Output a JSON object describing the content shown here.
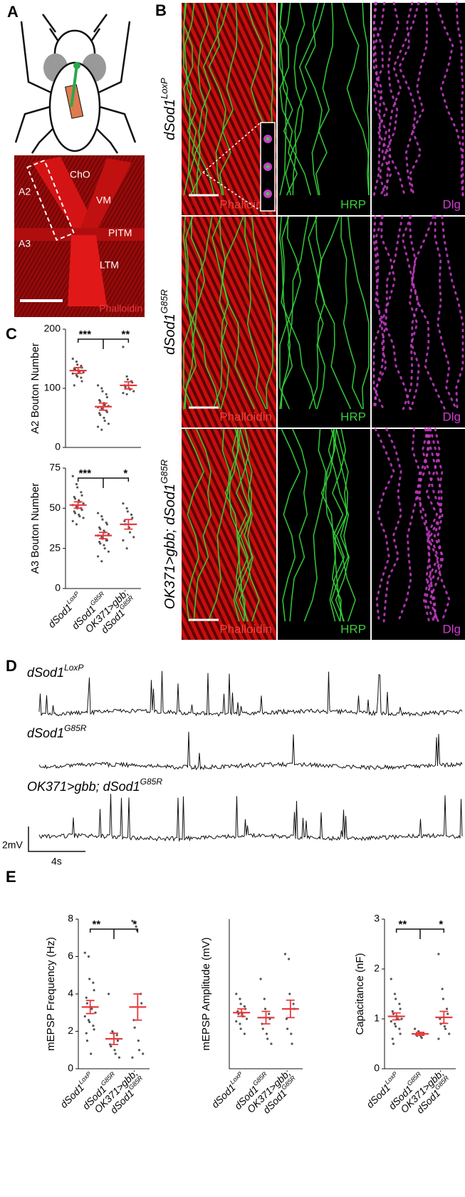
{
  "panel_labels": [
    "A",
    "B",
    "C",
    "D",
    "E"
  ],
  "panel_a": {
    "image_labels": [
      "ChO",
      "VM",
      "A2",
      "PITM",
      "A3",
      "LTM"
    ],
    "stain": "Phalloidin"
  },
  "panel_b": {
    "rows": [
      {
        "genotype": "dSod1",
        "superscript": "LoxP"
      },
      {
        "genotype": "dSod1",
        "superscript": "G85R"
      },
      {
        "prefix": "OK371>gbb; ",
        "genotype": "dSod1",
        "superscript": "G85R"
      }
    ],
    "columns": [
      "Phalloidin",
      "HRP",
      "Dlg"
    ]
  },
  "panel_d": {
    "traces": [
      {
        "genotype": "dSod1",
        "superscript": "LoxP"
      },
      {
        "genotype": "dSod1",
        "superscript": "G85R"
      },
      {
        "prefix": "OK371>gbb; ",
        "genotype": "dSod1",
        "superscript": "G85R"
      }
    ],
    "scale_y": "2mV",
    "scale_x": "4s"
  },
  "chart_data": [
    {
      "type": "dot",
      "ylabel": "A2 Bouton Number",
      "categories": [
        null,
        null,
        null
      ],
      "ylim": [
        0,
        200
      ],
      "yticks": [
        0,
        100,
        200
      ],
      "color": "#e8393d",
      "point_color": "#555555",
      "points": [
        [
          150,
          145,
          140,
          138,
          135,
          133,
          132,
          130,
          128,
          127,
          125,
          122,
          120,
          118,
          112,
          105
        ],
        [
          105,
          100,
          95,
          90,
          85,
          80,
          78,
          75,
          72,
          70,
          68,
          66,
          65,
          62,
          60,
          58,
          55,
          50,
          45,
          40,
          35,
          30
        ],
        [
          170,
          120,
          115,
          112,
          110,
          105,
          102,
          100,
          98,
          95,
          92,
          90
        ]
      ],
      "means": [
        130,
        69,
        105
      ],
      "sem": [
        5,
        6,
        6
      ],
      "significance": [
        "***",
        "**"
      ]
    },
    {
      "type": "dot",
      "ylabel": "A3 Bouton Number",
      "categories": [
        "dSod1",
        "dSod1",
        "dSod1"
      ],
      "superscripts": [
        "LoxP",
        "G85R",
        "G85R"
      ],
      "category_prefix": "OK371>gbb;",
      "ylim": [
        0,
        75
      ],
      "yticks": [
        0,
        25,
        50,
        75
      ],
      "color": "#e8393d",
      "point_color": "#555555",
      "points": [
        [
          70,
          65,
          63,
          60,
          58,
          57,
          56,
          55,
          54,
          53,
          52,
          51,
          50,
          50,
          49,
          48,
          47,
          46,
          45,
          44,
          42,
          40
        ],
        [
          47,
          45,
          43,
          41,
          40,
          38,
          37,
          36,
          35,
          34,
          33,
          32,
          31,
          30,
          30,
          29,
          28,
          27,
          25,
          23,
          20,
          17
        ],
        [
          53,
          50,
          48,
          46,
          44,
          42,
          40,
          38,
          35,
          32,
          30,
          25
        ]
      ],
      "means": [
        52,
        33,
        40
      ],
      "sem": [
        2,
        2,
        3
      ],
      "significance": [
        "***",
        "*"
      ]
    },
    {
      "type": "dot",
      "ylabel": "mEPSP Frequency (Hz)",
      "categories": [
        "dSod1",
        "dSod1",
        "dSod1"
      ],
      "superscripts": [
        "LoxP",
        "G85R",
        "G85R"
      ],
      "category_prefix": "OK371>gbb;",
      "ylim": [
        0,
        8
      ],
      "yticks": [
        0,
        2,
        4,
        6,
        8
      ],
      "color": "#e8393d",
      "point_color": "#555555",
      "points": [
        [
          6.2,
          6.0,
          4.8,
          4.6,
          4.2,
          3.8,
          3.5,
          3.3,
          3.2,
          3.0,
          2.8,
          2.6,
          2.5,
          2.3,
          2.1,
          1.9,
          1.5,
          0.8
        ],
        [
          4.0,
          2.0,
          1.9,
          1.8,
          1.5,
          1.3,
          1.2,
          1.0,
          0.8,
          0.6
        ],
        [
          7.9,
          7.6,
          7.4,
          4.0,
          3.5,
          2.6,
          2.2,
          1.5,
          1.0,
          0.8,
          0.6
        ]
      ],
      "means": [
        3.3,
        1.6,
        3.3
      ],
      "sem": [
        0.35,
        0.3,
        0.7
      ],
      "significance": [
        "**",
        "*"
      ]
    },
    {
      "type": "dot",
      "ylabel": "mEPSP Amplitude (mV)",
      "categories": [
        "dSod1",
        "dSod1",
        "dSod1"
      ],
      "superscripts": [
        "LoxP",
        "G85R",
        "G85R"
      ],
      "category_prefix": "OK371>gbb;",
      "ylim": [
        0,
        6
      ],
      "color": "#e8393d",
      "point_color": "#555555",
      "points": [
        [
          3.0,
          2.8,
          2.6,
          2.5,
          2.4,
          2.3,
          2.2,
          2.2,
          2.1,
          2.0,
          1.9,
          1.8,
          1.6,
          1.4
        ],
        [
          3.6,
          2.8,
          2.4,
          2.2,
          2.0,
          1.8,
          1.6,
          1.4,
          1.2,
          1.0
        ],
        [
          4.6,
          4.4,
          3.0,
          2.6,
          2.4,
          2.0,
          1.6,
          1.4,
          1.0
        ]
      ],
      "means": [
        2.25,
        2.05,
        2.4
      ],
      "sem": [
        0.15,
        0.25,
        0.35
      ]
    },
    {
      "type": "dot",
      "ylabel": "Capacitance (nF)",
      "categories": [
        "dSod1",
        "dSod1",
        "dSod1"
      ],
      "superscripts": [
        "LoxP",
        "G85R",
        "G85R"
      ],
      "category_prefix": "OK371>gbb;",
      "ylim": [
        0,
        3
      ],
      "yticks": [
        0,
        1,
        2,
        3
      ],
      "color": "#e8393d",
      "point_color": "#555555",
      "points": [
        [
          1.8,
          1.5,
          1.4,
          1.3,
          1.2,
          1.15,
          1.1,
          1.05,
          1.0,
          1.0,
          0.95,
          0.9,
          0.85,
          0.8,
          0.7,
          0.6,
          0.5
        ],
        [
          0.8,
          0.75,
          0.72,
          0.7,
          0.7,
          0.68,
          0.66,
          0.65,
          0.62
        ],
        [
          2.3,
          1.6,
          1.4,
          1.2,
          1.1,
          1.0,
          0.9,
          0.85,
          0.8,
          0.7,
          0.6
        ]
      ],
      "means": [
        1.05,
        0.7,
        1.03
      ],
      "sem": [
        0.07,
        0.03,
        0.12
      ],
      "significance": [
        "**",
        "*"
      ]
    }
  ]
}
